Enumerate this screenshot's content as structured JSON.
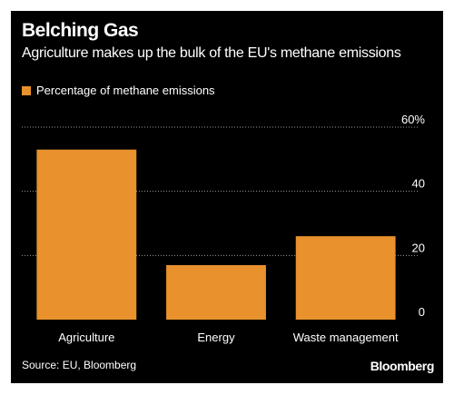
{
  "title": "Belching Gas",
  "subtitle": "Agriculture makes up the bulk of the EU's methane emissions",
  "legend_label": "Percentage of methane emissions",
  "source": "Source: EU, Bloomberg",
  "brand": "Bloomberg",
  "colors": {
    "bar": "#e8912d",
    "background": "#000000",
    "grid": "#9a9a9a",
    "text": "#ffffff"
  },
  "chart_data": {
    "type": "bar",
    "categories": [
      "Agriculture",
      "Energy",
      "Waste management"
    ],
    "series": [
      {
        "name": "Percentage of methane emissions",
        "values": [
          53,
          17,
          26
        ]
      }
    ],
    "ylim": [
      0,
      60
    ],
    "yticks": [
      0,
      20,
      40,
      60
    ],
    "ytick_labels": [
      "0",
      "20",
      "40",
      "60%"
    ],
    "grid": true,
    "legend": "top-left"
  }
}
